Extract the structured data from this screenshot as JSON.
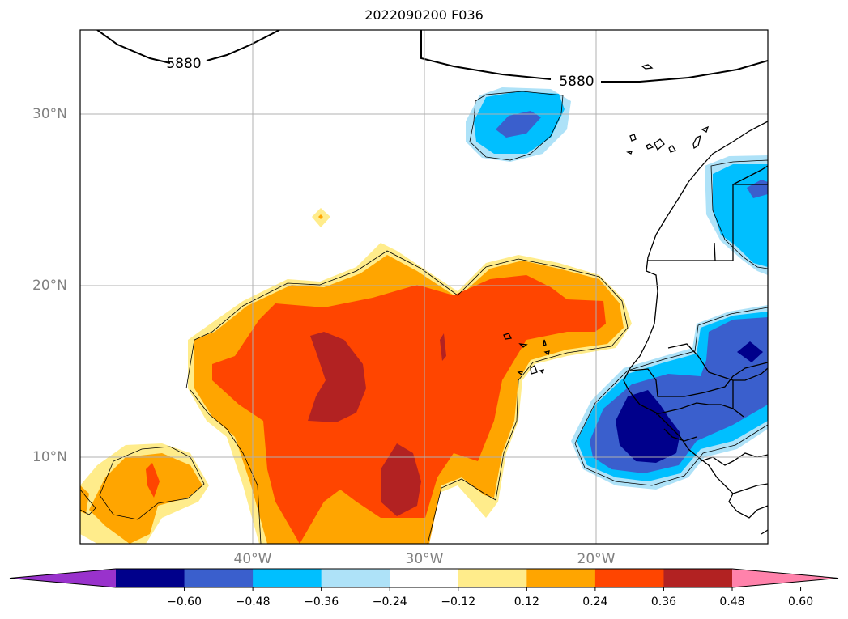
{
  "title": "2022090200 F036",
  "lat_labels": [
    "30°N",
    "20°N",
    "10°N"
  ],
  "lon_labels": [
    "40°W",
    "30°W",
    "20°W"
  ],
  "contour_labels": [
    "5880",
    "5880"
  ],
  "colorbar": {
    "ticks": [
      "−0.60",
      "−0.48",
      "−0.36",
      "−0.24",
      "−0.12",
      "0.12",
      "0.24",
      "0.36",
      "0.48",
      "0.60"
    ],
    "colors": [
      "#9932cc",
      "#00008b",
      "#3a5fcd",
      "#00bfff",
      "#aee2f8",
      "#ffffff",
      "#ffec8b",
      "#ffa500",
      "#ff4500",
      "#b22222",
      "#ff82ab"
    ]
  }
}
